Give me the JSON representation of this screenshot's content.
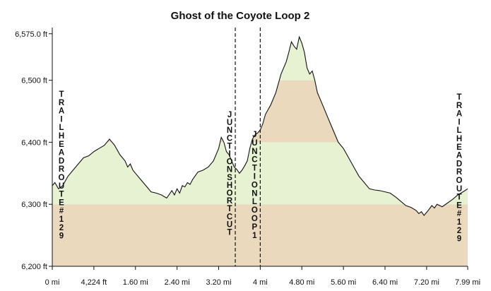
{
  "chart_data": {
    "type": "area",
    "title": "Ghost of the Coyote Loop 2",
    "xlabel": "",
    "ylabel": "",
    "xlim": [
      0,
      7.99
    ],
    "ylim": [
      6200,
      6585
    ],
    "x_ticks": [
      {
        "value": 0,
        "label": "0 mi"
      },
      {
        "value": 0.8,
        "label": "4,224 ft"
      },
      {
        "value": 1.6,
        "label": "1.60 mi"
      },
      {
        "value": 2.4,
        "label": "2.40 mi"
      },
      {
        "value": 3.2,
        "label": "3.20 mi"
      },
      {
        "value": 4.0,
        "label": "4 mi"
      },
      {
        "value": 4.8,
        "label": "4.80 mi"
      },
      {
        "value": 5.6,
        "label": "5.60 mi"
      },
      {
        "value": 6.4,
        "label": "6.40 mi"
      },
      {
        "value": 7.2,
        "label": "7.20 mi"
      },
      {
        "value": 7.99,
        "label": "7.99 mi"
      }
    ],
    "y_ticks": [
      {
        "value": 6200,
        "label": "6,200 ft"
      },
      {
        "value": 6300,
        "label": "6,300 ft"
      },
      {
        "value": 6400,
        "label": "6,400 ft"
      },
      {
        "value": 6500,
        "label": "6,500 ft"
      },
      {
        "value": 6575,
        "label": "6,575.0 ft"
      }
    ],
    "elevation_bands": [
      {
        "from": 6200,
        "to": 6300,
        "color": "#ead9bd"
      },
      {
        "from": 6300,
        "to": 6400,
        "color": "#e7f2d3"
      },
      {
        "from": 6400,
        "to": 6500,
        "color": "#ead9bd"
      },
      {
        "from": 6500,
        "to": 6600,
        "color": "#e7f2d3"
      }
    ],
    "series": [
      {
        "x": [
          0,
          0.05,
          0.12,
          0.2,
          0.3,
          0.4,
          0.5,
          0.6,
          0.7,
          0.8,
          0.9,
          1.0,
          1.1,
          1.2,
          1.3,
          1.4,
          1.45,
          1.5,
          1.55,
          1.6,
          1.7,
          1.8,
          1.9,
          2.0,
          2.1,
          2.2,
          2.3,
          2.35,
          2.4,
          2.45,
          2.5,
          2.55,
          2.6,
          2.65,
          2.7,
          2.8,
          2.9,
          3.0,
          3.1,
          3.2,
          3.25,
          3.3,
          3.35,
          3.4,
          3.45,
          3.5,
          3.55,
          3.6,
          3.65,
          3.7,
          3.75,
          3.8,
          3.85,
          3.9,
          3.95,
          4.0,
          4.05,
          4.1,
          4.2,
          4.3,
          4.4,
          4.5,
          4.55,
          4.6,
          4.65,
          4.7,
          4.75,
          4.8,
          4.85,
          4.9,
          4.95,
          5.0,
          5.05,
          5.1,
          5.2,
          5.3,
          5.4,
          5.5,
          5.6,
          5.7,
          5.8,
          5.9,
          6.0,
          6.1,
          6.2,
          6.3,
          6.4,
          6.5,
          6.6,
          6.7,
          6.8,
          6.9,
          7.0,
          7.05,
          7.1,
          7.15,
          7.2,
          7.25,
          7.3,
          7.35,
          7.4,
          7.5,
          7.6,
          7.7,
          7.8,
          7.9,
          7.99
        ],
        "y": [
          6330,
          6335,
          6325,
          6330,
          6345,
          6355,
          6365,
          6375,
          6378,
          6385,
          6390,
          6395,
          6405,
          6395,
          6380,
          6370,
          6360,
          6365,
          6355,
          6350,
          6340,
          6330,
          6320,
          6318,
          6315,
          6310,
          6322,
          6315,
          6325,
          6318,
          6330,
          6328,
          6335,
          6332,
          6340,
          6352,
          6355,
          6360,
          6370,
          6390,
          6408,
          6400,
          6385,
          6380,
          6370,
          6360,
          6356,
          6350,
          6355,
          6362,
          6370,
          6390,
          6405,
          6412,
          6415,
          6420,
          6430,
          6445,
          6460,
          6480,
          6510,
          6530,
          6545,
          6562,
          6555,
          6550,
          6570,
          6560,
          6545,
          6520,
          6510,
          6515,
          6500,
          6480,
          6460,
          6440,
          6420,
          6400,
          6390,
          6375,
          6360,
          6345,
          6335,
          6325,
          6323,
          6322,
          6320,
          6318,
          6312,
          6305,
          6298,
          6295,
          6290,
          6285,
          6288,
          6282,
          6287,
          6292,
          6298,
          6294,
          6300,
          6296,
          6302,
          6308,
          6315,
          6320,
          6325
        ]
      }
    ],
    "markers": [
      {
        "x": 3.52,
        "label": "JUNCTION SHORTCUT",
        "style": "dashed"
      },
      {
        "x": 4.0,
        "label": "JUNCTION LOOP 1",
        "style": "dashed"
      }
    ],
    "waypoints": [
      {
        "x": 0.0,
        "label": "TRAILHEAD ROUTE #129"
      },
      {
        "x": 7.99,
        "label": "TRAILHEAD ROUTE #129"
      }
    ],
    "grid": false,
    "legend": "none"
  }
}
